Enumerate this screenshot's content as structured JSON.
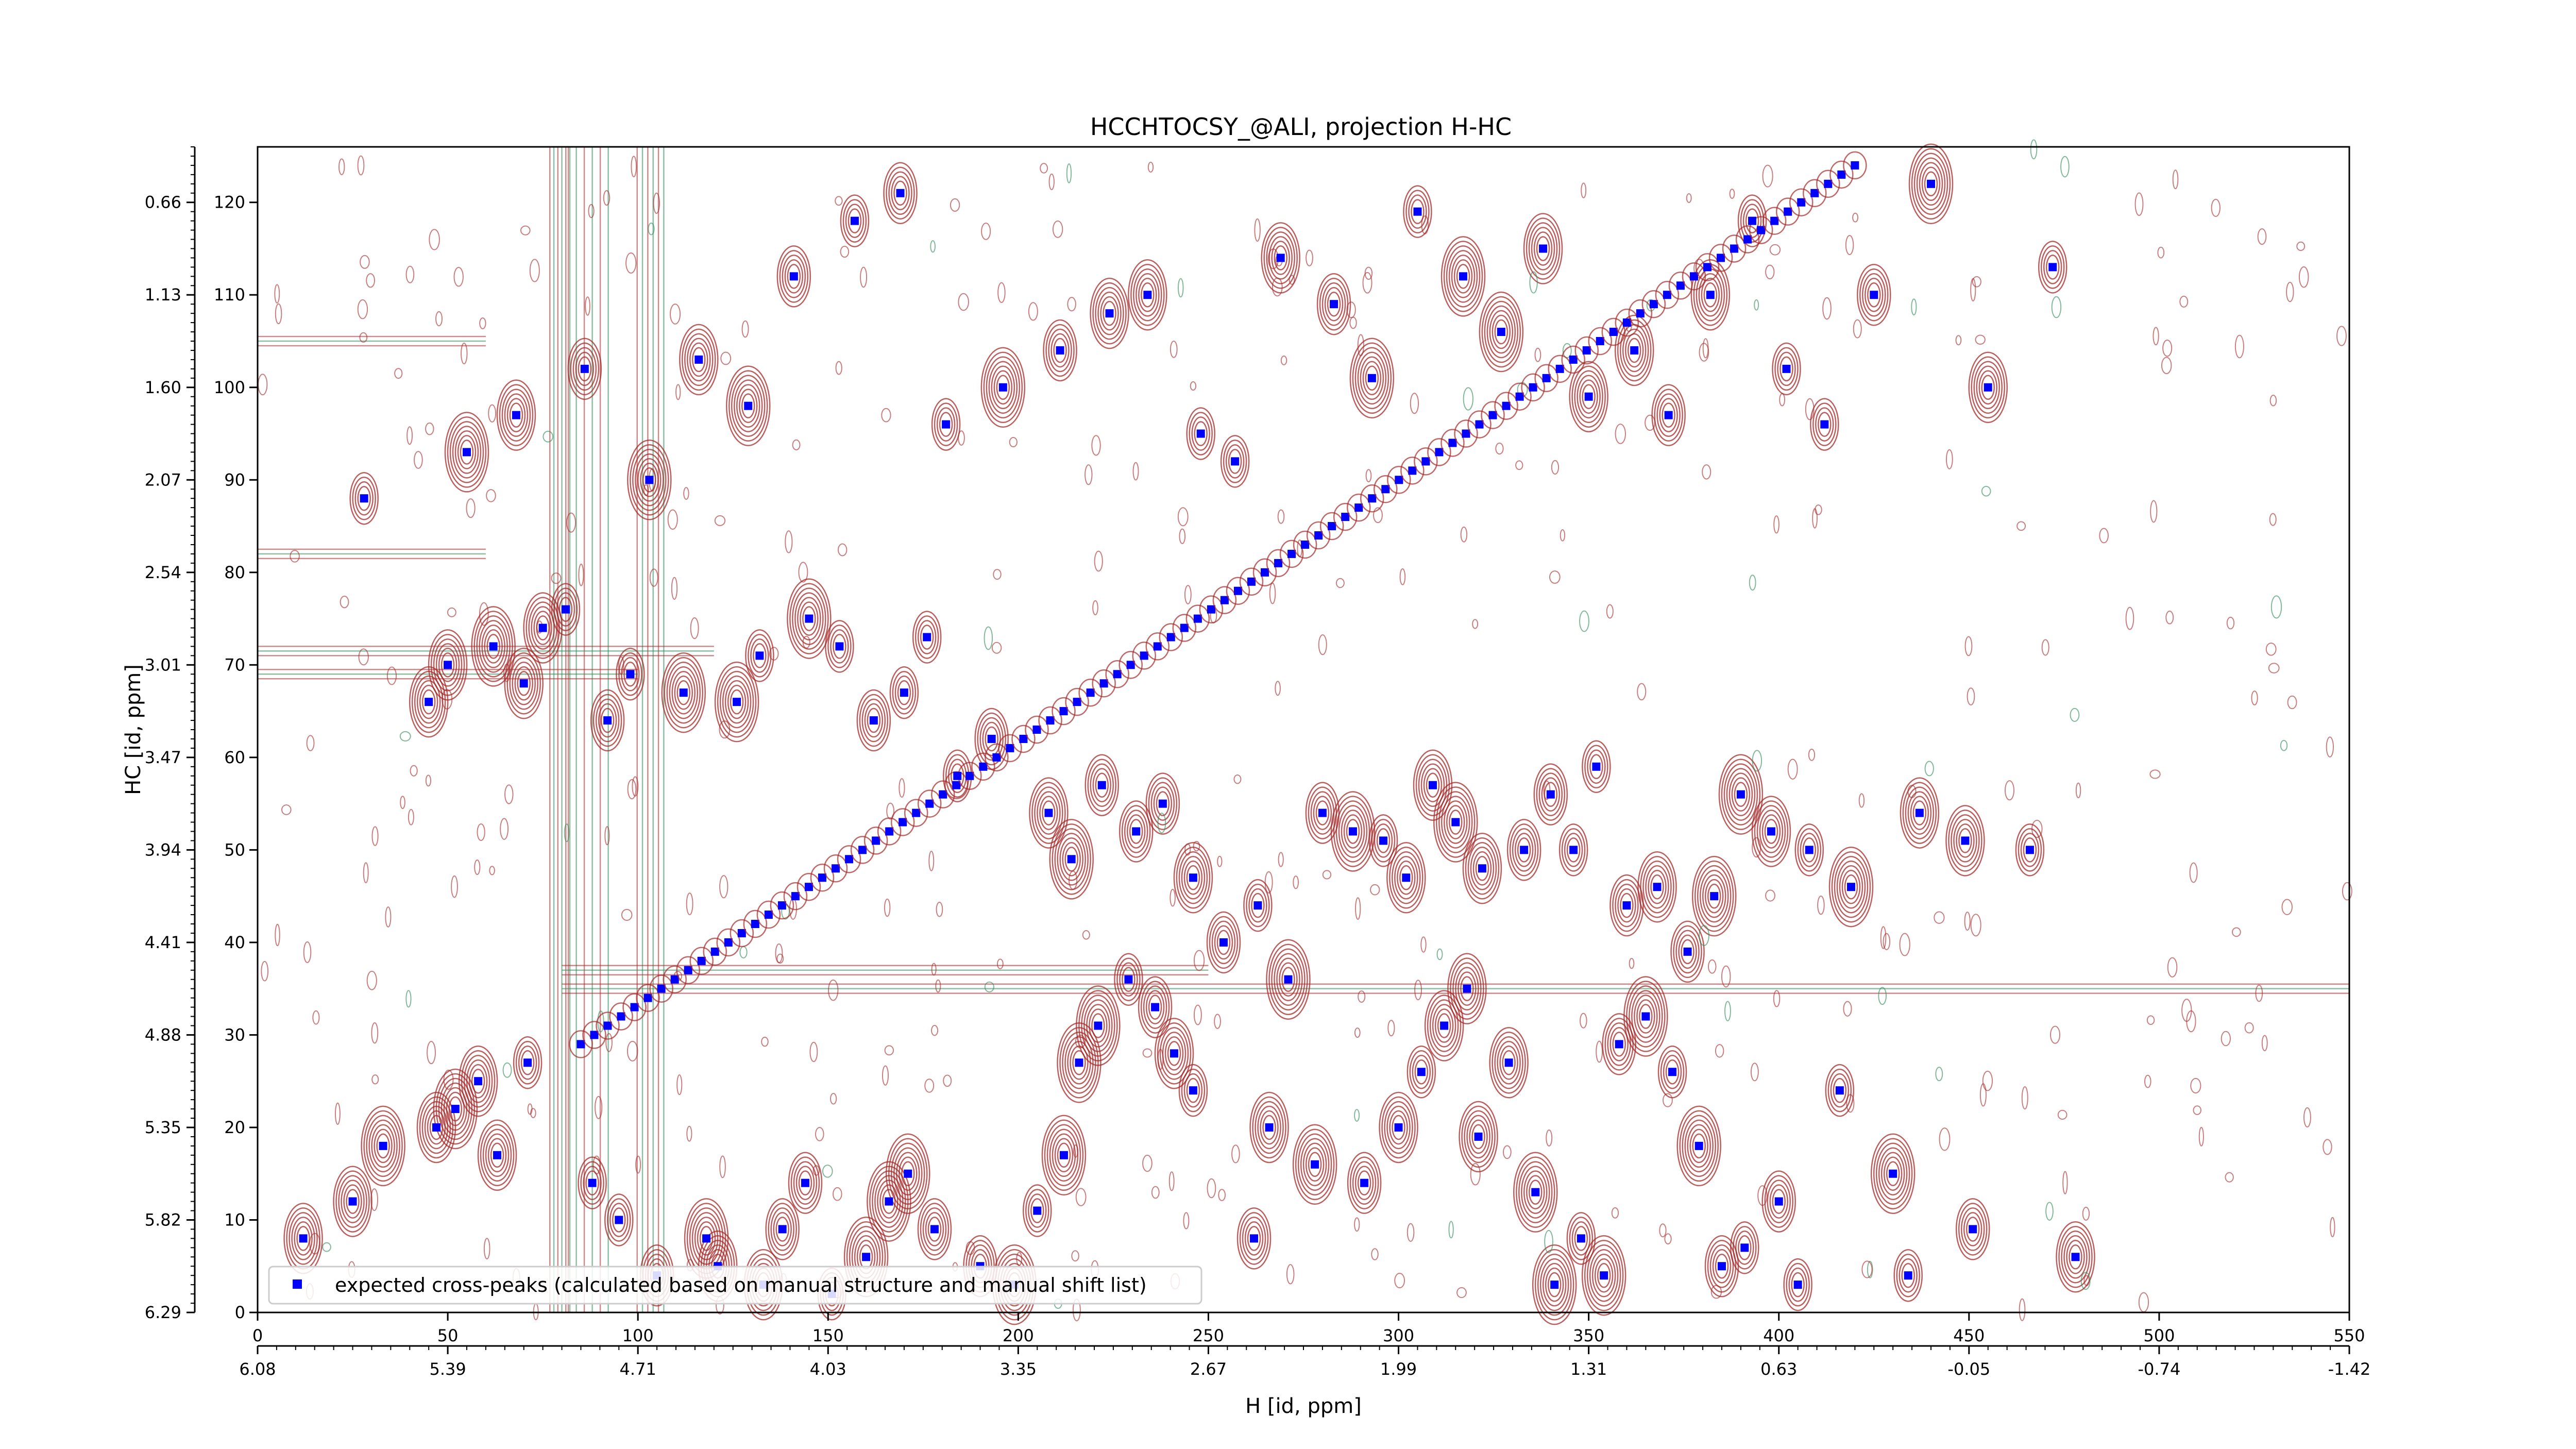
{
  "chart_data": {
    "type": "scatter",
    "title": "HCCHTOCSY_@ALI, projection H-HC",
    "xlabel": "H [id, ppm]",
    "ylabel": "HC [id, ppm]",
    "xlim": [
      0,
      550
    ],
    "ylim": [
      0,
      126
    ],
    "x_ticks": [
      0,
      50,
      100,
      150,
      200,
      250,
      300,
      350,
      400,
      450,
      500,
      550
    ],
    "y_ticks": [
      0,
      10,
      20,
      30,
      40,
      50,
      60,
      70,
      80,
      90,
      100,
      110,
      120
    ],
    "secondary_x_tick_labels": [
      "6.08",
      "5.39",
      "4.71",
      "4.03",
      "3.35",
      "2.67",
      "1.99",
      "1.31",
      "0.63",
      "-0.05",
      "-0.74",
      "-1.42"
    ],
    "secondary_y_tick_labels": [
      "6.29",
      "5.82",
      "5.35",
      "4.88",
      "4.41",
      "3.94",
      "3.47",
      "3.01",
      "2.54",
      "2.07",
      "1.60",
      "1.13",
      "0.66"
    ],
    "grid": false,
    "legend_position": "lower-left",
    "colors": {
      "marker": "#0000ff",
      "contour_positive": "#a52a2a",
      "contour_negative": "#2e8b57"
    },
    "series": [
      {
        "name": "expected cross-peaks (calculated based on manual structure and manual shift list)",
        "marker": "square",
        "diagonal": {
          "from": [
            85,
            29
          ],
          "to": [
            420,
            124
          ]
        },
        "x": [
          12,
          25,
          33,
          47,
          52,
          58,
          63,
          71,
          88,
          95,
          105,
          118,
          121,
          133,
          138,
          144,
          151,
          160,
          166,
          171,
          178,
          190,
          199,
          205,
          212,
          216,
          221,
          229,
          236,
          241,
          246,
          262,
          266,
          278,
          291,
          300,
          306,
          312,
          318,
          321,
          329,
          336,
          341,
          348,
          354,
          358,
          365,
          372,
          379,
          385,
          391,
          400,
          405,
          416,
          430,
          434,
          451,
          478,
          45,
          50,
          62,
          70,
          75,
          81,
          92,
          98,
          112,
          126,
          132,
          145,
          153,
          162,
          170,
          176,
          184,
          193,
          208,
          214,
          222,
          231,
          238,
          246,
          254,
          263,
          271,
          280,
          288,
          296,
          302,
          309,
          315,
          322,
          333,
          340,
          346,
          352,
          360,
          368,
          376,
          383,
          390,
          398,
          408,
          419,
          437,
          449,
          466,
          28,
          55,
          68,
          86,
          103,
          116,
          129,
          141,
          157,
          169,
          181,
          196,
          211,
          224,
          234,
          248,
          257,
          269,
          283,
          293,
          305,
          317,
          327,
          338,
          350,
          362,
          371,
          382,
          393,
          402,
          412,
          425,
          440,
          455,
          472
        ],
        "y": [
          8,
          12,
          18,
          20,
          22,
          25,
          17,
          27,
          14,
          10,
          4,
          8,
          5,
          3,
          9,
          14,
          2,
          6,
          12,
          15,
          9,
          5,
          3,
          11,
          17,
          27,
          31,
          36,
          33,
          28,
          24,
          8,
          20,
          16,
          14,
          20,
          26,
          31,
          35,
          19,
          27,
          13,
          3,
          8,
          4,
          29,
          32,
          26,
          18,
          5,
          7,
          12,
          3,
          24,
          15,
          4,
          9,
          6,
          66,
          70,
          72,
          68,
          74,
          76,
          64,
          69,
          67,
          66,
          71,
          75,
          72,
          64,
          67,
          73,
          58,
          62,
          54,
          49,
          57,
          52,
          55,
          47,
          40,
          44,
          36,
          54,
          52,
          51,
          47,
          57,
          53,
          48,
          50,
          56,
          50,
          59,
          44,
          46,
          39,
          45,
          56,
          52,
          50,
          46,
          54,
          51,
          50,
          88,
          93,
          97,
          102,
          90,
          103,
          98,
          112,
          118,
          121,
          96,
          100,
          104,
          108,
          110,
          95,
          92,
          114,
          109,
          101,
          119,
          112,
          106,
          115,
          99,
          104,
          97,
          110,
          118,
          102,
          96,
          110,
          122,
          100,
          113
        ]
      }
    ]
  }
}
